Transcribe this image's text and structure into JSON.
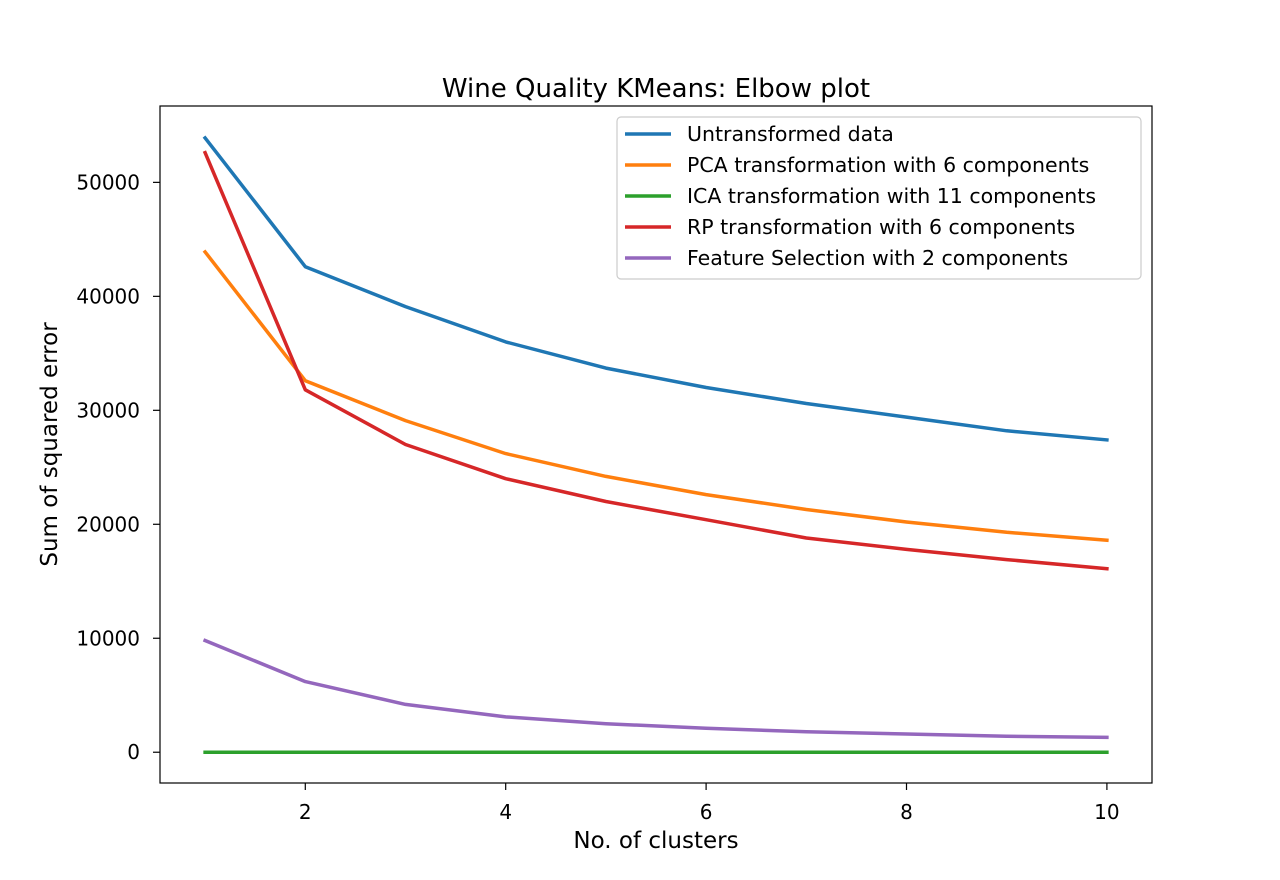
{
  "chart_data": {
    "type": "line",
    "title": "Wine Quality KMeans: Elbow plot",
    "xlabel": "No. of clusters",
    "ylabel": "Sum of squared error",
    "xlim": [
      0.55,
      10.45
    ],
    "ylim": [
      -2700,
      56700
    ],
    "xticks": [
      2,
      4,
      6,
      8,
      10
    ],
    "yticks": [
      0,
      10000,
      20000,
      30000,
      40000,
      50000
    ],
    "grid": false,
    "legend_position": "top-right",
    "x": [
      1,
      2,
      3,
      4,
      5,
      6,
      7,
      8,
      9,
      10
    ],
    "series": [
      {
        "name": "Untransformed data",
        "color": "#1f77b4",
        "values": [
          53900,
          42600,
          39100,
          36000,
          33700,
          32000,
          30600,
          29400,
          28200,
          27400
        ]
      },
      {
        "name": "PCA transformation with 6 components",
        "color": "#ff7f0e",
        "values": [
          43900,
          32600,
          29100,
          26200,
          24200,
          22600,
          21300,
          20200,
          19300,
          18600
        ]
      },
      {
        "name": "ICA transformation with 11 components",
        "color": "#2ca02c",
        "values": [
          0,
          0,
          0,
          0,
          0,
          0,
          0,
          0,
          0,
          0
        ]
      },
      {
        "name": "RP transformation with 6 components",
        "color": "#d62728",
        "values": [
          52600,
          31800,
          27000,
          24000,
          22000,
          20400,
          18800,
          17800,
          16900,
          16100
        ]
      },
      {
        "name": "Feature Selection with 2 components",
        "color": "#9467bd",
        "values": [
          9800,
          6200,
          4200,
          3100,
          2500,
          2100,
          1800,
          1600,
          1400,
          1300
        ]
      }
    ]
  }
}
